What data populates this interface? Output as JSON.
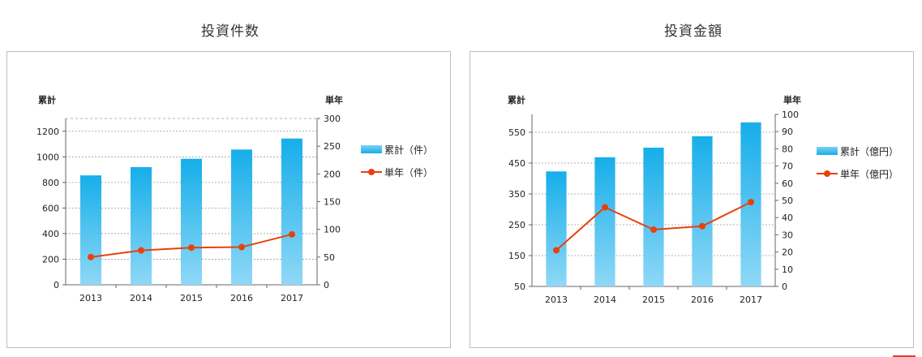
{
  "charts": [
    {
      "title": "投資件数"
    },
    {
      "title": "投資金額"
    }
  ],
  "chart_data": [
    {
      "type": "bar",
      "title": "投資件数",
      "categories": [
        "2013",
        "2014",
        "2015",
        "2016",
        "2017"
      ],
      "series": [
        {
          "name": "累計（件）",
          "type": "bar",
          "axis": "left",
          "values": [
            855,
            920,
            985,
            1057,
            1143
          ],
          "color": "#16aeea"
        },
        {
          "name": "単年（件）",
          "type": "line",
          "axis": "right",
          "values": [
            50,
            62,
            67,
            68,
            91
          ],
          "color": "#e8410c"
        }
      ],
      "ylabel": "累計",
      "y2label": "単年",
      "ylim": [
        0,
        1300
      ],
      "y2lim": [
        0,
        300
      ],
      "yticks": [
        0,
        200,
        400,
        600,
        800,
        1000,
        1200
      ],
      "y2ticks": [
        0,
        50,
        100,
        150,
        200,
        250,
        300
      ],
      "grid": true,
      "legend_position": "right"
    },
    {
      "type": "bar",
      "title": "投資金額",
      "categories": [
        "2013",
        "2014",
        "2015",
        "2016",
        "2017"
      ],
      "series": [
        {
          "name": "累計（億円）",
          "type": "bar",
          "axis": "left",
          "values": [
            423,
            469,
            500,
            537,
            582
          ],
          "color": "#16aeea"
        },
        {
          "name": "単年（億円）",
          "type": "line",
          "axis": "right",
          "values": [
            21,
            46,
            33,
            35,
            49
          ],
          "color": "#e8410c"
        }
      ],
      "ylabel": "累計",
      "y2label": "単年",
      "ylim": [
        50,
        600
      ],
      "y2lim": [
        0,
        100
      ],
      "yticks": [
        50,
        150,
        250,
        350,
        450,
        550
      ],
      "y2ticks": [
        0,
        10,
        20,
        30,
        40,
        50,
        60,
        70,
        80,
        90,
        100
      ],
      "grid": true,
      "legend_position": "right"
    }
  ]
}
